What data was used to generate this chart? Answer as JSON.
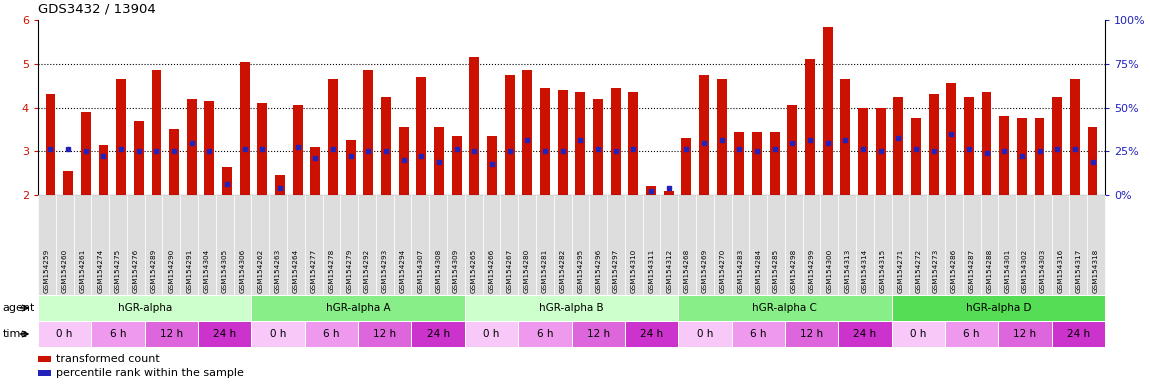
{
  "title": "GDS3432 / 13904",
  "samples": [
    "GSM154259",
    "GSM154260",
    "GSM154261",
    "GSM154274",
    "GSM154275",
    "GSM154276",
    "GSM154289",
    "GSM154290",
    "GSM154291",
    "GSM154304",
    "GSM154305",
    "GSM154306",
    "GSM154262",
    "GSM154263",
    "GSM154264",
    "GSM154277",
    "GSM154278",
    "GSM154279",
    "GSM154292",
    "GSM154293",
    "GSM154294",
    "GSM154307",
    "GSM154308",
    "GSM154309",
    "GSM154265",
    "GSM154266",
    "GSM154267",
    "GSM154280",
    "GSM154281",
    "GSM154282",
    "GSM154295",
    "GSM154296",
    "GSM154297",
    "GSM154310",
    "GSM154311",
    "GSM154312",
    "GSM154268",
    "GSM154269",
    "GSM154270",
    "GSM154283",
    "GSM154284",
    "GSM154285",
    "GSM154298",
    "GSM154299",
    "GSM154300",
    "GSM154313",
    "GSM154314",
    "GSM154315",
    "GSM154271",
    "GSM154272",
    "GSM154273",
    "GSM154286",
    "GSM154287",
    "GSM154288",
    "GSM154301",
    "GSM154302",
    "GSM154303",
    "GSM154316",
    "GSM154317",
    "GSM154318"
  ],
  "bar_heights": [
    4.3,
    2.55,
    3.9,
    3.15,
    4.65,
    3.7,
    4.85,
    3.5,
    4.2,
    4.15,
    2.65,
    5.05,
    4.1,
    2.45,
    4.05,
    3.1,
    4.65,
    3.25,
    4.85,
    4.25,
    3.55,
    4.7,
    3.55,
    3.35,
    5.15,
    3.35,
    4.75,
    4.85,
    4.45,
    4.4,
    4.35,
    4.2,
    4.45,
    4.35,
    2.2,
    2.1,
    3.3,
    4.75,
    4.65,
    3.45,
    3.45,
    3.45,
    4.05,
    5.1,
    5.85,
    4.65,
    4.0,
    4.0,
    4.25,
    3.75,
    4.3,
    4.55,
    4.25,
    4.35,
    3.8,
    3.75,
    3.75,
    4.25,
    4.65,
    3.55
  ],
  "percentile_values": [
    3.05,
    3.05,
    3.0,
    2.9,
    3.05,
    3.0,
    3.0,
    3.0,
    3.2,
    3.0,
    2.25,
    3.05,
    3.05,
    2.15,
    3.1,
    2.85,
    3.05,
    2.9,
    3.0,
    3.0,
    2.8,
    2.9,
    2.75,
    3.05,
    3.0,
    2.7,
    3.0,
    3.25,
    3.0,
    3.0,
    3.25,
    3.05,
    3.0,
    3.05,
    2.1,
    2.15,
    3.05,
    3.2,
    3.25,
    3.05,
    3.0,
    3.05,
    3.2,
    3.25,
    3.2,
    3.25,
    3.05,
    3.0,
    3.3,
    3.05,
    3.0,
    3.4,
    3.05,
    2.95,
    3.0,
    2.9,
    3.0,
    3.05,
    3.05,
    2.75
  ],
  "agents": [
    {
      "label": "hGR-alpha",
      "start": 0,
      "end": 12,
      "color": "#ccffcc"
    },
    {
      "label": "hGR-alpha A",
      "start": 12,
      "end": 24,
      "color": "#88ee88"
    },
    {
      "label": "hGR-alpha B",
      "start": 24,
      "end": 36,
      "color": "#ccffcc"
    },
    {
      "label": "hGR-alpha C",
      "start": 36,
      "end": 48,
      "color": "#88ee88"
    },
    {
      "label": "hGR-alpha D",
      "start": 48,
      "end": 60,
      "color": "#55dd55"
    }
  ],
  "time_colors": [
    "#f8c8f8",
    "#ee99ee",
    "#dd66dd",
    "#cc33cc"
  ],
  "time_labels": [
    "0 h",
    "6 h",
    "12 h",
    "24 h"
  ],
  "ylim": [
    2.0,
    6.0
  ],
  "yticks_left": [
    2,
    3,
    4,
    5,
    6
  ],
  "yticks_right": [
    0,
    25,
    50,
    75,
    100
  ],
  "bar_color": "#cc1100",
  "dot_color": "#2222bb",
  "bg_color": "#ffffff",
  "tick_label_color": "#cc1100",
  "right_tick_color": "#2222bb",
  "sample_bg_color": "#dddddd",
  "sample_border_color": "#ffffff"
}
